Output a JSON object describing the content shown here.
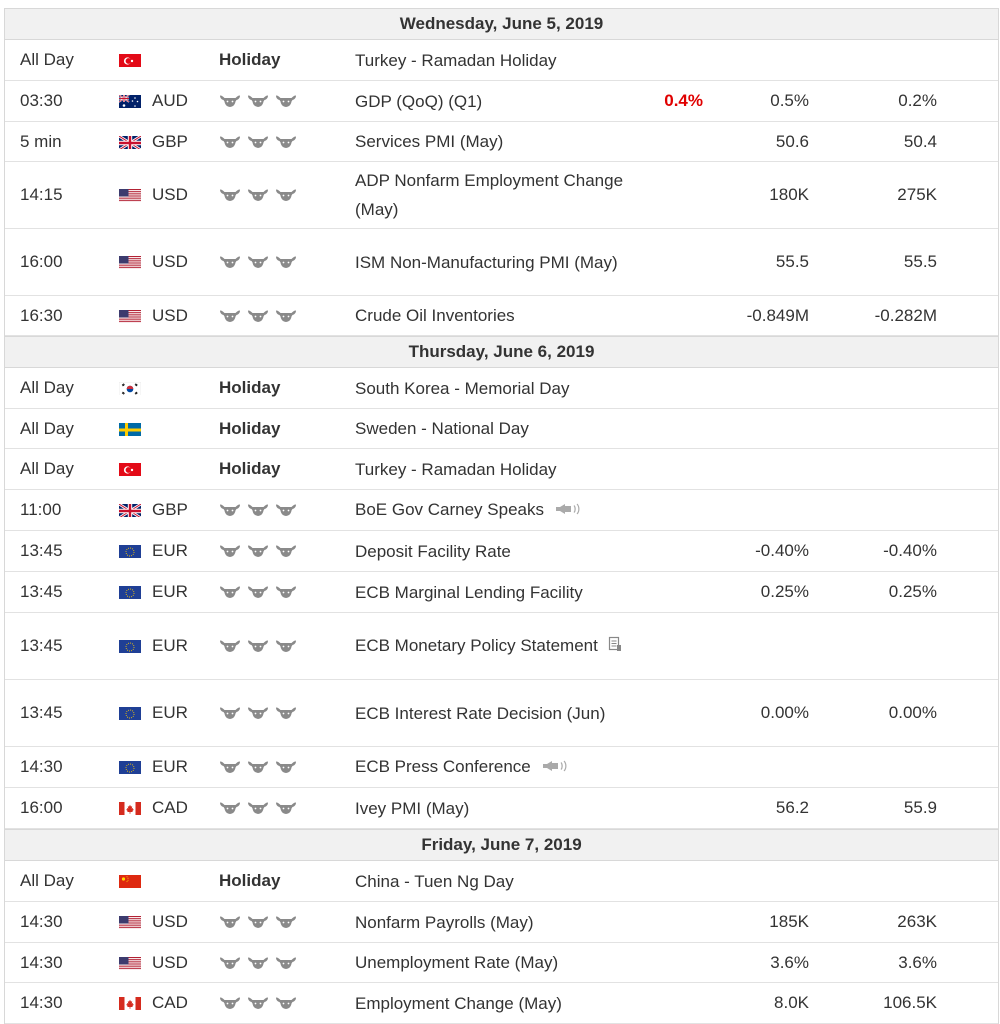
{
  "sections": [
    {
      "date": "Wednesday, June 5, 2019",
      "events": [
        {
          "time": "All Day",
          "flag": "tr-flag",
          "currency": "",
          "importance": "Holiday",
          "event": "Turkey - Ramadan Holiday",
          "actual": "",
          "forecast": "",
          "previous": "",
          "h": 40
        },
        {
          "time": "03:30",
          "flag": "au-flag",
          "currency": "AUD",
          "importance": "3",
          "event": "GDP (QoQ) (Q1)",
          "actual": "0.4%",
          "forecast": "0.5%",
          "previous": "0.2%",
          "h": 40
        },
        {
          "time": "5 min",
          "flag": "gb-flag",
          "currency": "GBP",
          "importance": "3",
          "event": "Services PMI (May)",
          "actual": "",
          "forecast": "50.6",
          "previous": "50.4",
          "h": 39
        },
        {
          "time": "14:15",
          "flag": "us-flag",
          "currency": "USD",
          "importance": "3",
          "event": "ADP Nonfarm Employment Change (May)",
          "actual": "",
          "forecast": "180K",
          "previous": "275K",
          "h": 66
        },
        {
          "time": "16:00",
          "flag": "us-flag",
          "currency": "USD",
          "importance": "3",
          "event": "ISM Non-Manufacturing PMI (May)",
          "actual": "",
          "forecast": "55.5",
          "previous": "55.5",
          "h": 66
        },
        {
          "time": "16:30",
          "flag": "us-flag",
          "currency": "USD",
          "importance": "3",
          "event": "Crude Oil Inventories",
          "actual": "",
          "forecast": "-0.849M",
          "previous": "-0.282M",
          "h": 39
        }
      ]
    },
    {
      "date": "Thursday, June 6, 2019",
      "events": [
        {
          "time": "All Day",
          "flag": "kr-flag",
          "currency": "",
          "importance": "Holiday",
          "event": "South Korea - Memorial Day",
          "actual": "",
          "forecast": "",
          "previous": "",
          "h": 40
        },
        {
          "time": "All Day",
          "flag": "se-flag",
          "currency": "",
          "importance": "Holiday",
          "event": "Sweden - National Day",
          "actual": "",
          "forecast": "",
          "previous": "",
          "h": 39
        },
        {
          "time": "All Day",
          "flag": "tr-flag",
          "currency": "",
          "importance": "Holiday",
          "event": "Turkey - Ramadan Holiday",
          "actual": "",
          "forecast": "",
          "previous": "",
          "h": 40
        },
        {
          "time": "11:00",
          "flag": "gb-flag",
          "currency": "GBP",
          "importance": "3",
          "event": "BoE Gov Carney Speaks",
          "extra": "speaker-icon",
          "actual": "",
          "forecast": "",
          "previous": "",
          "h": 40
        },
        {
          "time": "13:45",
          "flag": "eu-flag",
          "currency": "EUR",
          "importance": "3",
          "event": "Deposit Facility Rate",
          "actual": "",
          "forecast": "-0.40%",
          "previous": "-0.40%",
          "h": 40
        },
        {
          "time": "13:45",
          "flag": "eu-flag",
          "currency": "EUR",
          "importance": "3",
          "event": "ECB Marginal Lending Facility",
          "actual": "",
          "forecast": "0.25%",
          "previous": "0.25%",
          "h": 40
        },
        {
          "time": "13:45",
          "flag": "eu-flag",
          "currency": "EUR",
          "importance": "3",
          "event": "ECB Monetary Policy Statement",
          "extra": "document-icon",
          "actual": "",
          "forecast": "",
          "previous": "",
          "h": 66
        },
        {
          "time": "13:45",
          "flag": "eu-flag",
          "currency": "EUR",
          "importance": "3",
          "event": "ECB Interest Rate Decision (Jun)",
          "actual": "",
          "forecast": "0.00%",
          "previous": "0.00%",
          "h": 66
        },
        {
          "time": "14:30",
          "flag": "eu-flag",
          "currency": "EUR",
          "importance": "3",
          "event": "ECB Press Conference",
          "extra": "speaker-icon",
          "actual": "",
          "forecast": "",
          "previous": "",
          "h": 40
        },
        {
          "time": "16:00",
          "flag": "ca-flag",
          "currency": "CAD",
          "importance": "3",
          "event": "Ivey PMI (May)",
          "actual": "",
          "forecast": "56.2",
          "previous": "55.9",
          "h": 40
        }
      ]
    },
    {
      "date": "Friday, June 7, 2019",
      "events": [
        {
          "time": "All Day",
          "flag": "cn-flag",
          "currency": "",
          "importance": "Holiday",
          "event": "China - Tuen Ng Day",
          "actual": "",
          "forecast": "",
          "previous": "",
          "h": 40
        },
        {
          "time": "14:30",
          "flag": "us-flag",
          "currency": "USD",
          "importance": "3",
          "event": "Nonfarm Payrolls (May)",
          "actual": "",
          "forecast": "185K",
          "previous": "263K",
          "h": 40
        },
        {
          "time": "14:30",
          "flag": "us-flag",
          "currency": "USD",
          "importance": "3",
          "event": "Unemployment Rate (May)",
          "actual": "",
          "forecast": "3.6%",
          "previous": "3.6%",
          "h": 39
        },
        {
          "time": "14:30",
          "flag": "ca-flag",
          "currency": "CAD",
          "importance": "3",
          "event": "Employment Change (May)",
          "actual": "",
          "forecast": "8.0K",
          "previous": "106.5K",
          "h": 40
        }
      ]
    }
  ],
  "colors": {
    "actual_worse": "#e00000",
    "day_header_bg": "#f1f1f1",
    "bull_icon": "#8a8a8a"
  }
}
